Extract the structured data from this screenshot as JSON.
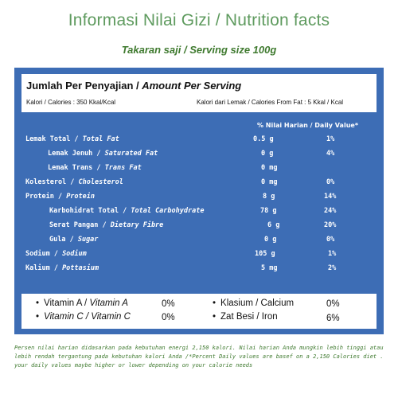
{
  "title": "Informasi Nilai Gizi / Nutrition facts",
  "subtitle": "Takaran saji / Serving size 100g",
  "header": {
    "title_id": "Jumlah Per Penyajian / ",
    "title_en": "Amount Per Serving",
    "calories": "Kalori / Calories : 350 Kkal/Kcal",
    "calories_fat": "Kalori dari Lemak / Calories From Fat : 5 Kkal / Kcal"
  },
  "dv_header": "% Nilai Harian / Daily Value*",
  "rows": [
    {
      "label_id": "Lemak Total / ",
      "label_en": "Total Fat",
      "amount": "0.5 g",
      "pct": "1%"
    },
    {
      "label_id": "Lemak Jenuh / ",
      "label_en": "Saturated Fat",
      "amount": "0 g",
      "pct": "4%"
    },
    {
      "label_id": "Lemak Trans / ",
      "label_en": "Trans Fat",
      "amount": "0 mg",
      "pct": ""
    },
    {
      "label_id": "Kolesterol / ",
      "label_en": "Cholesterol",
      "amount": "0 mg",
      "pct": "0%"
    },
    {
      "label_id": "Protein / ",
      "label_en": "Protein",
      "amount": "8 g",
      "pct": "14%"
    },
    {
      "label_id": "Karbohidrat Total / ",
      "label_en": "Total Carbohydrate",
      "amount": "78 g",
      "pct": "24%"
    },
    {
      "label_id": "Serat Pangan / ",
      "label_en": "Dietary Fibre",
      "amount": "6 g",
      "pct": "20%"
    },
    {
      "label_id": "Gula / ",
      "label_en": "Sugar",
      "amount": "0 g",
      "pct": "0%"
    },
    {
      "label_id": "Sodium / ",
      "label_en": "Sodium",
      "amount": "105 g",
      "pct": "1%"
    },
    {
      "label_id": "Kalium / ",
      "label_en": "Pottasium",
      "amount": "5 mg",
      "pct": "2%"
    }
  ],
  "vitamins": [
    {
      "label_id": "Vitamin A / ",
      "label_en": "Vitamin A",
      "value": "0%"
    },
    {
      "label_id": "Vitamin C / ",
      "label_en": "Vitamin C",
      "value": "0%"
    },
    {
      "label_id": "Klasium / Calcium",
      "label_en": "",
      "value": "0%"
    },
    {
      "label_id": "Zat Besi / Iron",
      "label_en": "",
      "value": "6%"
    }
  ],
  "footnote": "Persen nilai harian didasarkan pada kebutuhan energi 2,150 kalori. Nilai harian Anda mungkin lebih tinggi atau lebih rendah tergantung pada kebutuhan kalori Anda /*Percent Daily values are basef on a 2,150 Calories diet . your daily values maybe higher or lower depending on your calorie needs"
}
